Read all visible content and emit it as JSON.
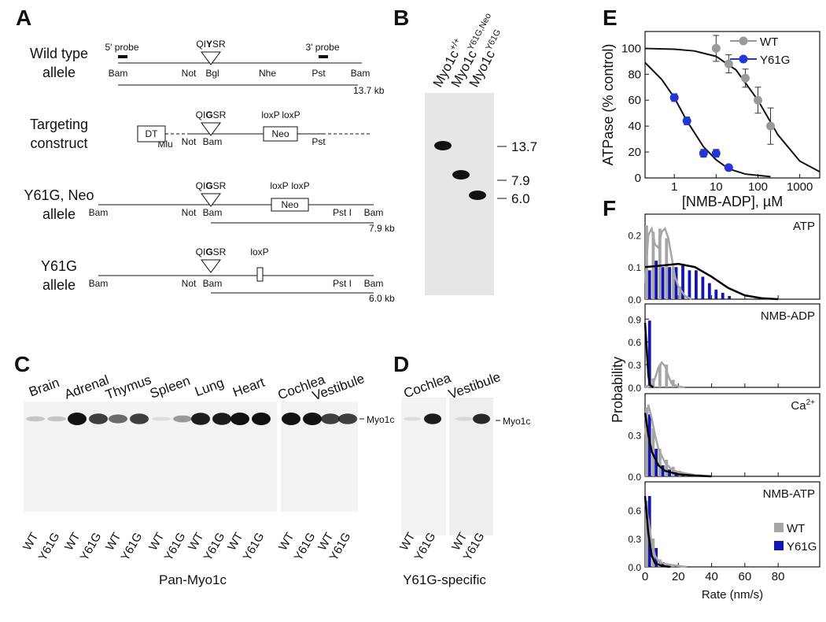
{
  "panel_letters": [
    "A",
    "B",
    "C",
    "D",
    "E",
    "F"
  ],
  "panel_a": {
    "rows": [
      {
        "name": [
          "Wild type",
          "allele"
        ],
        "probes": [
          "5' probe",
          "3' probe"
        ],
        "motif": [
          "QI",
          "Y",
          "SR"
        ],
        "sites": [
          "Bam",
          "Not",
          "Bgl",
          "Nhe",
          "Pst",
          "Bam"
        ],
        "size": "13.7 kb"
      },
      {
        "name": [
          "Targeting",
          "construct"
        ],
        "motif": [
          "QI",
          "G",
          "SR"
        ],
        "boxes": [
          "DT",
          "Neo"
        ],
        "lox": [
          "loxP",
          "loxP"
        ],
        "sites": [
          "Mlu",
          "Not",
          "Bam",
          "Pst"
        ]
      },
      {
        "name": [
          "Y61G, Neo",
          "allele"
        ],
        "motif": [
          "QI",
          "G",
          "SR"
        ],
        "lox": [
          "loxP",
          "loxP"
        ],
        "boxes": [
          "Neo"
        ],
        "sites": [
          "Bam",
          "Not",
          "Bam",
          "Pst I",
          "Bam"
        ],
        "size": "7.9 kb"
      },
      {
        "name": [
          "Y61G",
          "allele"
        ],
        "motif": [
          "QI",
          "G",
          "SR"
        ],
        "lox": [
          "loxP"
        ],
        "sites": [
          "Bam",
          "Not",
          "Bam",
          "Pst I",
          "Bam"
        ],
        "size": "6.0 kb"
      }
    ]
  },
  "panel_b": {
    "lanes": [
      {
        "name": "Myo1c",
        "sup": "+/+"
      },
      {
        "name": "Myo1c",
        "sup": "Y61G,Neo"
      },
      {
        "name": "Myo1c",
        "sup": "Y61G"
      }
    ],
    "markers": [
      "13.7",
      "7.9",
      "6.0"
    ]
  },
  "panel_c": {
    "tissues": [
      "Brain",
      "Adrenal",
      "Thymus",
      "Spleen",
      "Lung",
      "Heart",
      "Cochlea",
      "Vestibule"
    ],
    "lanes": [
      "WT",
      "Y61G"
    ],
    "band": "Myo1c",
    "caption": "Pan-Myo1c"
  },
  "panel_d": {
    "tissues": [
      "Cochlea",
      "Vestibule"
    ],
    "lanes": [
      "WT",
      "Y61G"
    ],
    "band": "Myo1c",
    "caption": "Y61G-specific"
  },
  "chart_data": [
    {
      "type": "scatter",
      "ylabel": "ATPase (% control)",
      "xlabel": "[NMB-ADP], µM",
      "xscale": "log",
      "xlim": [
        0.2,
        3000
      ],
      "xticks": [
        1,
        10,
        100,
        1000
      ],
      "ylim": [
        0,
        113
      ],
      "yticks": [
        0,
        20,
        40,
        60,
        80,
        100
      ],
      "legend": "upper right",
      "series": [
        {
          "name": "WT",
          "color": "#999999",
          "x": [
            10,
            20,
            50,
            100,
            200
          ],
          "values": [
            100,
            88,
            77,
            60,
            40
          ],
          "errors": [
            10,
            7,
            7,
            10,
            14
          ]
        },
        {
          "name": "Y61G",
          "color": "#2436d8",
          "x": [
            1,
            2,
            5,
            10,
            20
          ],
          "values": [
            62,
            44,
            19,
            19,
            8
          ],
          "errors": [
            3,
            3,
            3,
            3,
            2
          ]
        }
      ],
      "fits": [
        {
          "color": "#111111",
          "x": [
            0.2,
            1,
            3,
            10,
            30,
            100,
            300,
            1000,
            3000
          ],
          "values": [
            99.9,
            99.3,
            98,
            93.8,
            83.3,
            60,
            33.3,
            13,
            4.8
          ]
        },
        {
          "color": "#111111",
          "x": [
            0.2,
            0.5,
            1,
            2,
            5,
            10,
            20,
            50,
            200
          ],
          "values": [
            89,
            76,
            62,
            44,
            24,
            14,
            7,
            3,
            1
          ]
        }
      ]
    },
    {
      "type": "histogram",
      "title": "ATP",
      "ylabel": "Probability",
      "xlim": [
        0,
        105
      ],
      "ylim": [
        0,
        0.265
      ],
      "yticks": [
        {
          "value": 0,
          "label": "0.0"
        },
        0.1,
        0.2
      ],
      "bins": [
        0,
        4,
        8,
        12,
        16,
        20,
        24,
        28,
        32,
        36,
        40,
        44,
        48,
        52,
        56,
        60,
        64
      ],
      "series": [
        {
          "name": "WT",
          "color": "#a6a6a6",
          "values": [
            0.23,
            0.21,
            0.22,
            0.19,
            0.1,
            0.04,
            0.01,
            0,
            0,
            0,
            0,
            0,
            0,
            0,
            0,
            0
          ]
        },
        {
          "name": "Y61G",
          "color": "#1414b4",
          "values": [
            0.09,
            0.12,
            0.1,
            0.1,
            0.1,
            0.11,
            0.09,
            0.09,
            0.07,
            0.05,
            0.03,
            0.02,
            0.01,
            0,
            0,
            0
          ]
        }
      ],
      "fits": [
        {
          "color": "#a6a6a6",
          "x": [
            0,
            2,
            4,
            6,
            8,
            10,
            12,
            14,
            16,
            18,
            20,
            24,
            28
          ],
          "values": [
            0.05,
            0.2,
            0.22,
            0.17,
            0.16,
            0.21,
            0.22,
            0.19,
            0.13,
            0.07,
            0.04,
            0.01,
            0
          ]
        },
        {
          "color": "#000000",
          "x": [
            0,
            10,
            20,
            30,
            40,
            50,
            60,
            70,
            80
          ],
          "values": [
            0.1,
            0.105,
            0.11,
            0.1,
            0.07,
            0.035,
            0.012,
            0.003,
            0
          ]
        }
      ]
    },
    {
      "type": "histogram",
      "title": "NMB-ADP",
      "xlim": [
        0,
        105
      ],
      "ylim": [
        0,
        1.1
      ],
      "yticks": [
        {
          "value": 0,
          "label": "0.0"
        },
        0.3,
        0.6,
        0.9
      ],
      "bins": [
        0,
        4,
        8,
        12,
        16,
        20,
        24,
        28,
        32,
        36,
        40,
        44,
        48,
        52,
        56,
        60,
        64
      ],
      "series": [
        {
          "name": "WT",
          "color": "#a6a6a6",
          "values": [
            0.03,
            0.12,
            0.3,
            0.3,
            0.1,
            0.02,
            0,
            0,
            0,
            0,
            0,
            0,
            0,
            0,
            0,
            0
          ]
        },
        {
          "name": "Y61G",
          "color": "#1414b4",
          "values": [
            0.88,
            0,
            0,
            0,
            0,
            0,
            0,
            0,
            0,
            0,
            0,
            0,
            0,
            0,
            0,
            0
          ]
        }
      ],
      "fits": [
        {
          "color": "#a6a6a6",
          "x": [
            0,
            4,
            6,
            8,
            10,
            12,
            14,
            16,
            20,
            24
          ],
          "values": [
            0,
            0.02,
            0.12,
            0.26,
            0.33,
            0.28,
            0.15,
            0.05,
            0.01,
            0
          ]
        },
        {
          "color": "#000000",
          "x": [
            0,
            1,
            2,
            3,
            5
          ],
          "values": [
            0.85,
            0.5,
            0.15,
            0.03,
            0
          ]
        }
      ]
    },
    {
      "type": "histogram",
      "title": "Ca",
      "title_sup": "2+",
      "xlim": [
        0,
        105
      ],
      "ylim": [
        0,
        0.6
      ],
      "yticks": [
        {
          "value": 0,
          "label": "0.0"
        },
        0.3
      ],
      "bins": [
        0,
        4,
        8,
        12,
        16,
        20,
        24,
        28,
        32,
        36,
        40,
        44,
        48,
        52,
        56,
        60,
        64
      ],
      "series": [
        {
          "name": "WT",
          "color": "#a6a6a6",
          "values": [
            0.5,
            0.35,
            0.2,
            0.12,
            0.07,
            0.04,
            0.02,
            0.01,
            0.01,
            0.005,
            0,
            0,
            0,
            0,
            0,
            0
          ]
        },
        {
          "name": "Y61G",
          "color": "#1414b4",
          "values": [
            0.45,
            0.2,
            0.08,
            0.05,
            0.03,
            0.02,
            0.01,
            0.005,
            0,
            0,
            0,
            0,
            0,
            0,
            0,
            0
          ]
        }
      ],
      "fits": [
        {
          "color": "#a6a6a6",
          "x": [
            0,
            2,
            4,
            6,
            8,
            12,
            16,
            20,
            30,
            40
          ],
          "values": [
            0.3,
            0.52,
            0.42,
            0.3,
            0.2,
            0.1,
            0.05,
            0.03,
            0.01,
            0
          ]
        },
        {
          "color": "#000000",
          "x": [
            0,
            2,
            4,
            8,
            12,
            20,
            30,
            40
          ],
          "values": [
            0.46,
            0.3,
            0.18,
            0.08,
            0.04,
            0.015,
            0.005,
            0
          ]
        }
      ]
    },
    {
      "type": "histogram",
      "title": "NMB-ATP",
      "xlabel": "Rate (nm/s)",
      "xlim": [
        0,
        105
      ],
      "xticks": [
        0,
        20,
        40,
        60,
        80
      ],
      "ylim": [
        0,
        0.9
      ],
      "yticks": [
        {
          "value": 0,
          "label": "0.0"
        },
        0.3,
        0.6
      ],
      "legend": "lower right",
      "bins": [
        0,
        4,
        8,
        12,
        16,
        20,
        24,
        28,
        32,
        36,
        40,
        44,
        48,
        52,
        56,
        60,
        64
      ],
      "series": [
        {
          "name": "WT",
          "color": "#a6a6a6",
          "values": [
            0.7,
            0.3,
            0.08,
            0.03,
            0.02,
            0.01,
            0,
            0,
            0,
            0,
            0,
            0,
            0,
            0,
            0,
            0
          ]
        },
        {
          "name": "Y61G",
          "color": "#1414b4",
          "values": [
            0.75,
            0.2,
            0.05,
            0.01,
            0,
            0,
            0,
            0,
            0,
            0,
            0,
            0,
            0,
            0,
            0,
            0
          ]
        }
      ],
      "fits": [
        {
          "color": "#a6a6a6",
          "x": [
            0,
            2,
            4,
            6,
            8,
            12,
            16,
            20,
            25
          ],
          "values": [
            0.7,
            0.5,
            0.25,
            0.12,
            0.06,
            0.03,
            0.02,
            0.01,
            0
          ]
        },
        {
          "color": "#000000",
          "x": [
            0,
            2,
            4,
            6,
            10,
            15
          ],
          "values": [
            0.75,
            0.35,
            0.12,
            0.04,
            0.01,
            0
          ]
        }
      ]
    }
  ]
}
